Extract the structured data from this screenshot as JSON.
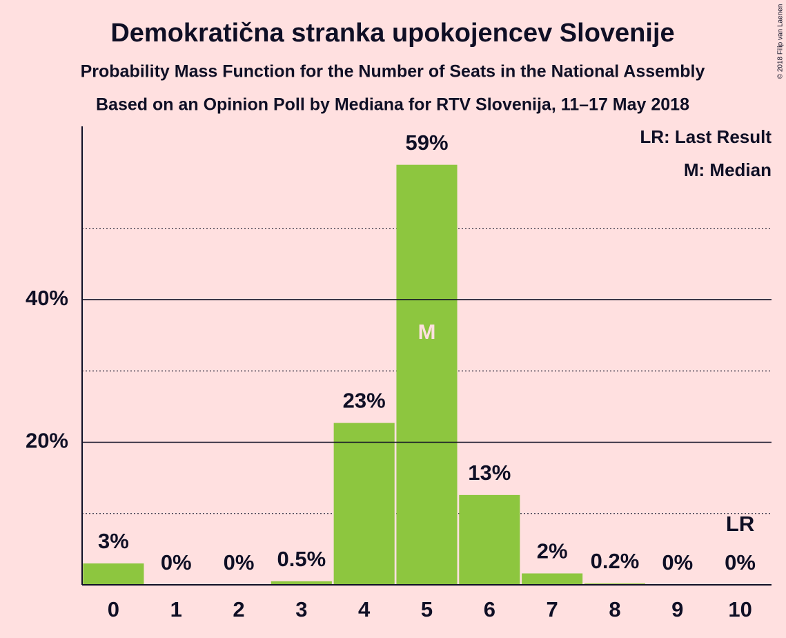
{
  "chart_data": {
    "type": "bar",
    "title": "Demokratična stranka upokojencev Slovenije",
    "subtitle": "Probability Mass Function for the Number of Seats in the National Assembly",
    "subtitle2": "Based on an Opinion Poll by Mediana for RTV Slovenija, 11–17 May 2018",
    "copyright": "© 2018 Filip van Laenen",
    "categories": [
      "0",
      "1",
      "2",
      "3",
      "4",
      "5",
      "6",
      "7",
      "8",
      "9",
      "10"
    ],
    "values": [
      3,
      0,
      0,
      0.5,
      22.7,
      58.9,
      12.6,
      1.6,
      0.2,
      0,
      0
    ],
    "value_labels": [
      "3%",
      "0%",
      "0%",
      "0.5%",
      "23%",
      "59%",
      "13%",
      "2%",
      "0.2%",
      "0%",
      "0%"
    ],
    "color": "#8dc63f",
    "ylim": [
      0,
      64
    ],
    "yticks": [
      {
        "value": 20,
        "label": "20%"
      },
      {
        "value": 40,
        "label": "40%"
      }
    ],
    "minor_yticks": [
      10,
      30,
      50
    ],
    "grid": true,
    "annotations": [
      {
        "text": "M",
        "category": "5"
      },
      {
        "text": "LR",
        "category": "10"
      }
    ],
    "legend": [
      "LR: Last Result",
      "M: Median"
    ]
  }
}
